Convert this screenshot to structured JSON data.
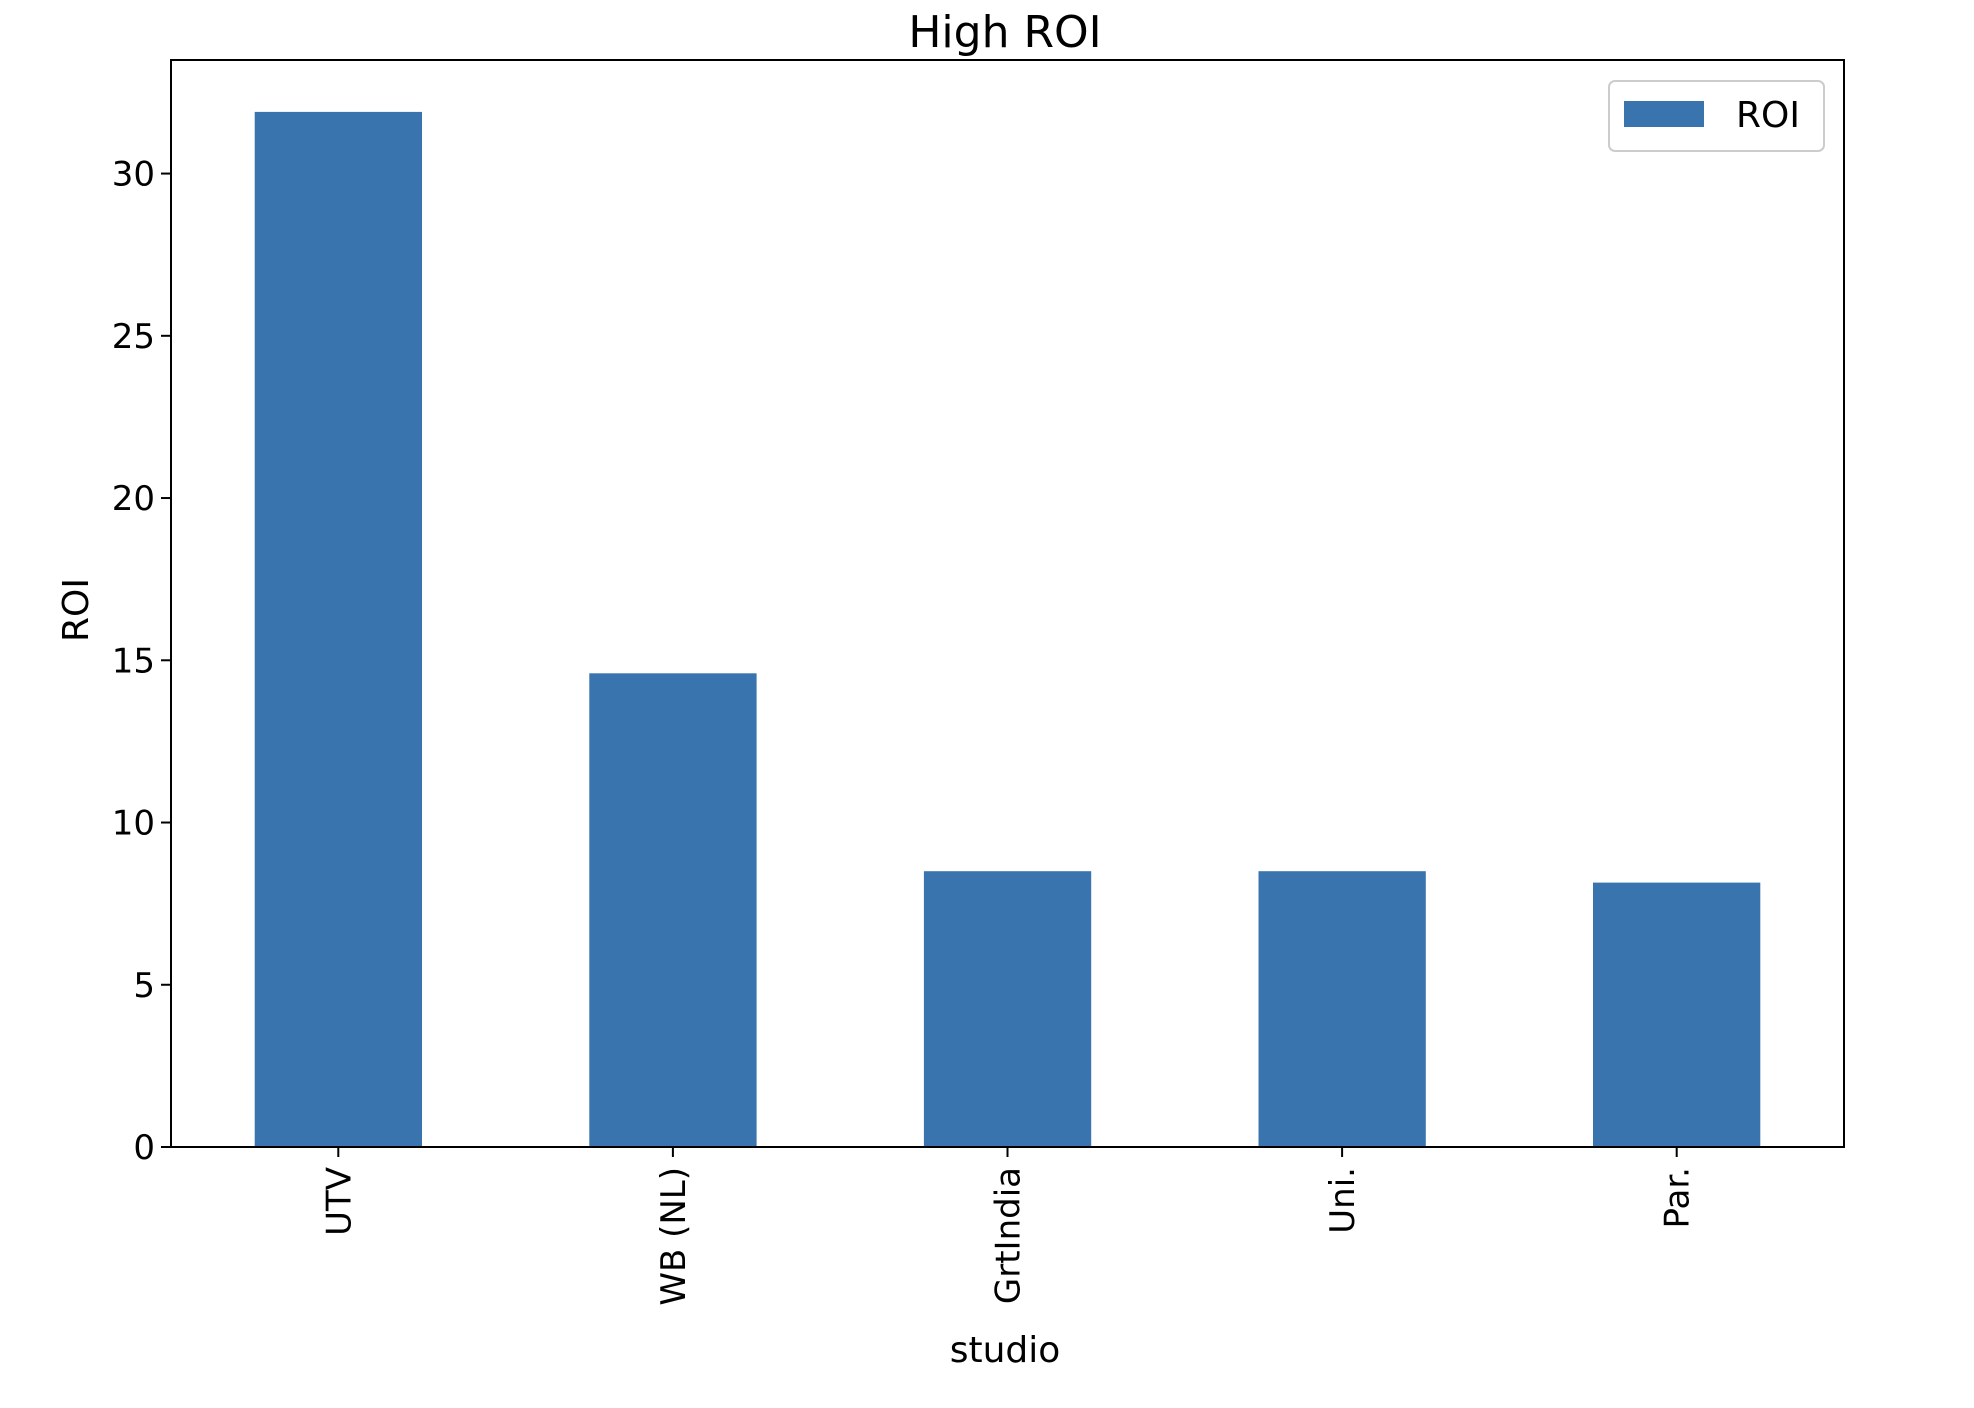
{
  "chart_data": {
    "type": "bar",
    "title": "High ROI",
    "xlabel": "studio",
    "ylabel": "ROI",
    "categories": [
      "UTV",
      "WB (NL)",
      "GrtIndia",
      "Uni.",
      "Par."
    ],
    "series": [
      {
        "name": "ROI",
        "values": [
          31.9,
          14.6,
          8.5,
          8.5,
          8.15
        ]
      }
    ],
    "ylim": [
      0,
      33.5
    ],
    "yticks": [
      0,
      5,
      10,
      15,
      20,
      25,
      30
    ],
    "tick_labels": [
      "0",
      "5",
      "10",
      "15",
      "20",
      "25",
      "30"
    ],
    "x_tick_rotation": "vertical",
    "grid": false,
    "legend_position": "top-right",
    "colors": {
      "bar": "#3a74ae",
      "axis": "#000000",
      "legend_border": "#cccccc"
    }
  }
}
